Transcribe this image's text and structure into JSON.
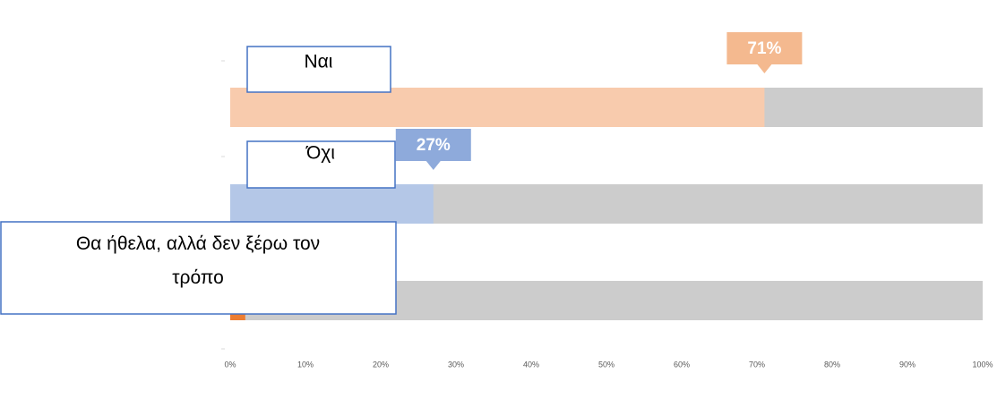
{
  "chart_data": {
    "type": "barh",
    "categories": [
      "Ναι",
      "Όχι",
      "Θα ήθελα, αλλά δεν ξέρω τον τρόπο"
    ],
    "values": [
      71,
      27,
      2
    ],
    "value_labels": [
      "71%",
      "27%",
      null
    ],
    "colors": [
      "#f8cbad",
      "#b4c7e7",
      "#ed7d31"
    ],
    "label_colors": [
      "#f4b98f",
      "#8eaadb",
      "#ed7d31"
    ],
    "background_color": "#cccccc",
    "xlim": [
      0,
      100
    ],
    "xticks": [
      {
        "value": 0,
        "label": "0%"
      },
      {
        "value": 10,
        "label": "10%"
      },
      {
        "value": 20,
        "label": "20%"
      },
      {
        "value": 30,
        "label": "30%"
      },
      {
        "value": 40,
        "label": "40%"
      },
      {
        "value": 50,
        "label": "50%"
      },
      {
        "value": 60,
        "label": "60%"
      },
      {
        "value": 70,
        "label": "70%"
      },
      {
        "value": 80,
        "label": "80%"
      },
      {
        "value": 90,
        "label": "90%"
      },
      {
        "value": 100,
        "label": "100%"
      }
    ]
  }
}
